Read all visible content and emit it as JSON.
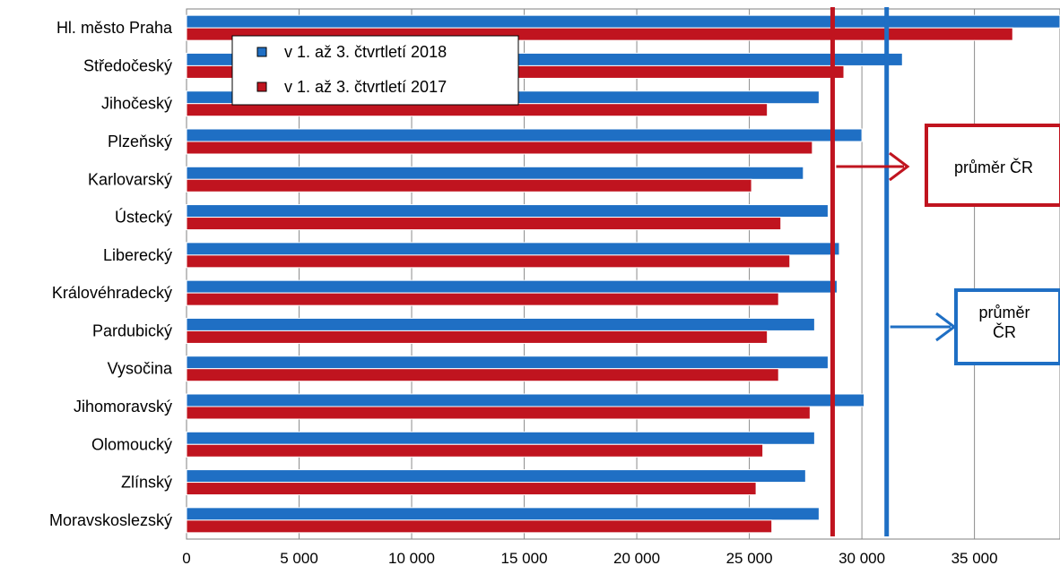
{
  "chart_data": {
    "type": "bar",
    "orientation": "horizontal",
    "title": "",
    "xlabel": "",
    "ylabel": "",
    "xlim": [
      0,
      38800
    ],
    "x_ticks": [
      0,
      5000,
      10000,
      15000,
      20000,
      25000,
      30000,
      35000
    ],
    "x_tick_labels": [
      "0",
      "5 000",
      "10 000",
      "15 000",
      "20 000",
      "25 000",
      "30 000",
      "35 000"
    ],
    "grid": true,
    "legend_position": "top-left",
    "categories": [
      "Hl. město Praha",
      "Středočeský",
      "Jihočeský",
      "Plzeňský",
      "Karlovarský",
      "Ústecký",
      "Liberecký",
      "Královéhradecký",
      "Pardubický",
      "Vysočina",
      "Jihomoravský",
      "Olomoucký",
      "Zlínský",
      "Moravskoslezský"
    ],
    "series": [
      {
        "name": "v 1. až 3. čtvrtletí 2018",
        "color": "#1f6fc4",
        "values": [
          38800,
          31800,
          28100,
          30000,
          27400,
          28500,
          29000,
          28900,
          27900,
          28500,
          30100,
          27900,
          27500,
          28100
        ]
      },
      {
        "name": "v 1. až 3. čtvrtletí 2017",
        "color": "#c0141f",
        "values": [
          36700,
          29200,
          25800,
          27800,
          25100,
          26400,
          26800,
          26300,
          25800,
          26300,
          27700,
          25600,
          25300,
          26000
        ]
      }
    ],
    "reference_lines": [
      {
        "label": "průměr ČR",
        "value": 28700,
        "color": "#c0141f"
      },
      {
        "label": "průměr ČR",
        "value": 31100,
        "color": "#1f6fc4"
      }
    ],
    "annotations": [
      {
        "text_lines": [
          "průměr ČR"
        ],
        "color": "#c0141f"
      },
      {
        "text_lines": [
          "průměr",
          "ČR"
        ],
        "color": "#1f6fc4"
      }
    ]
  }
}
